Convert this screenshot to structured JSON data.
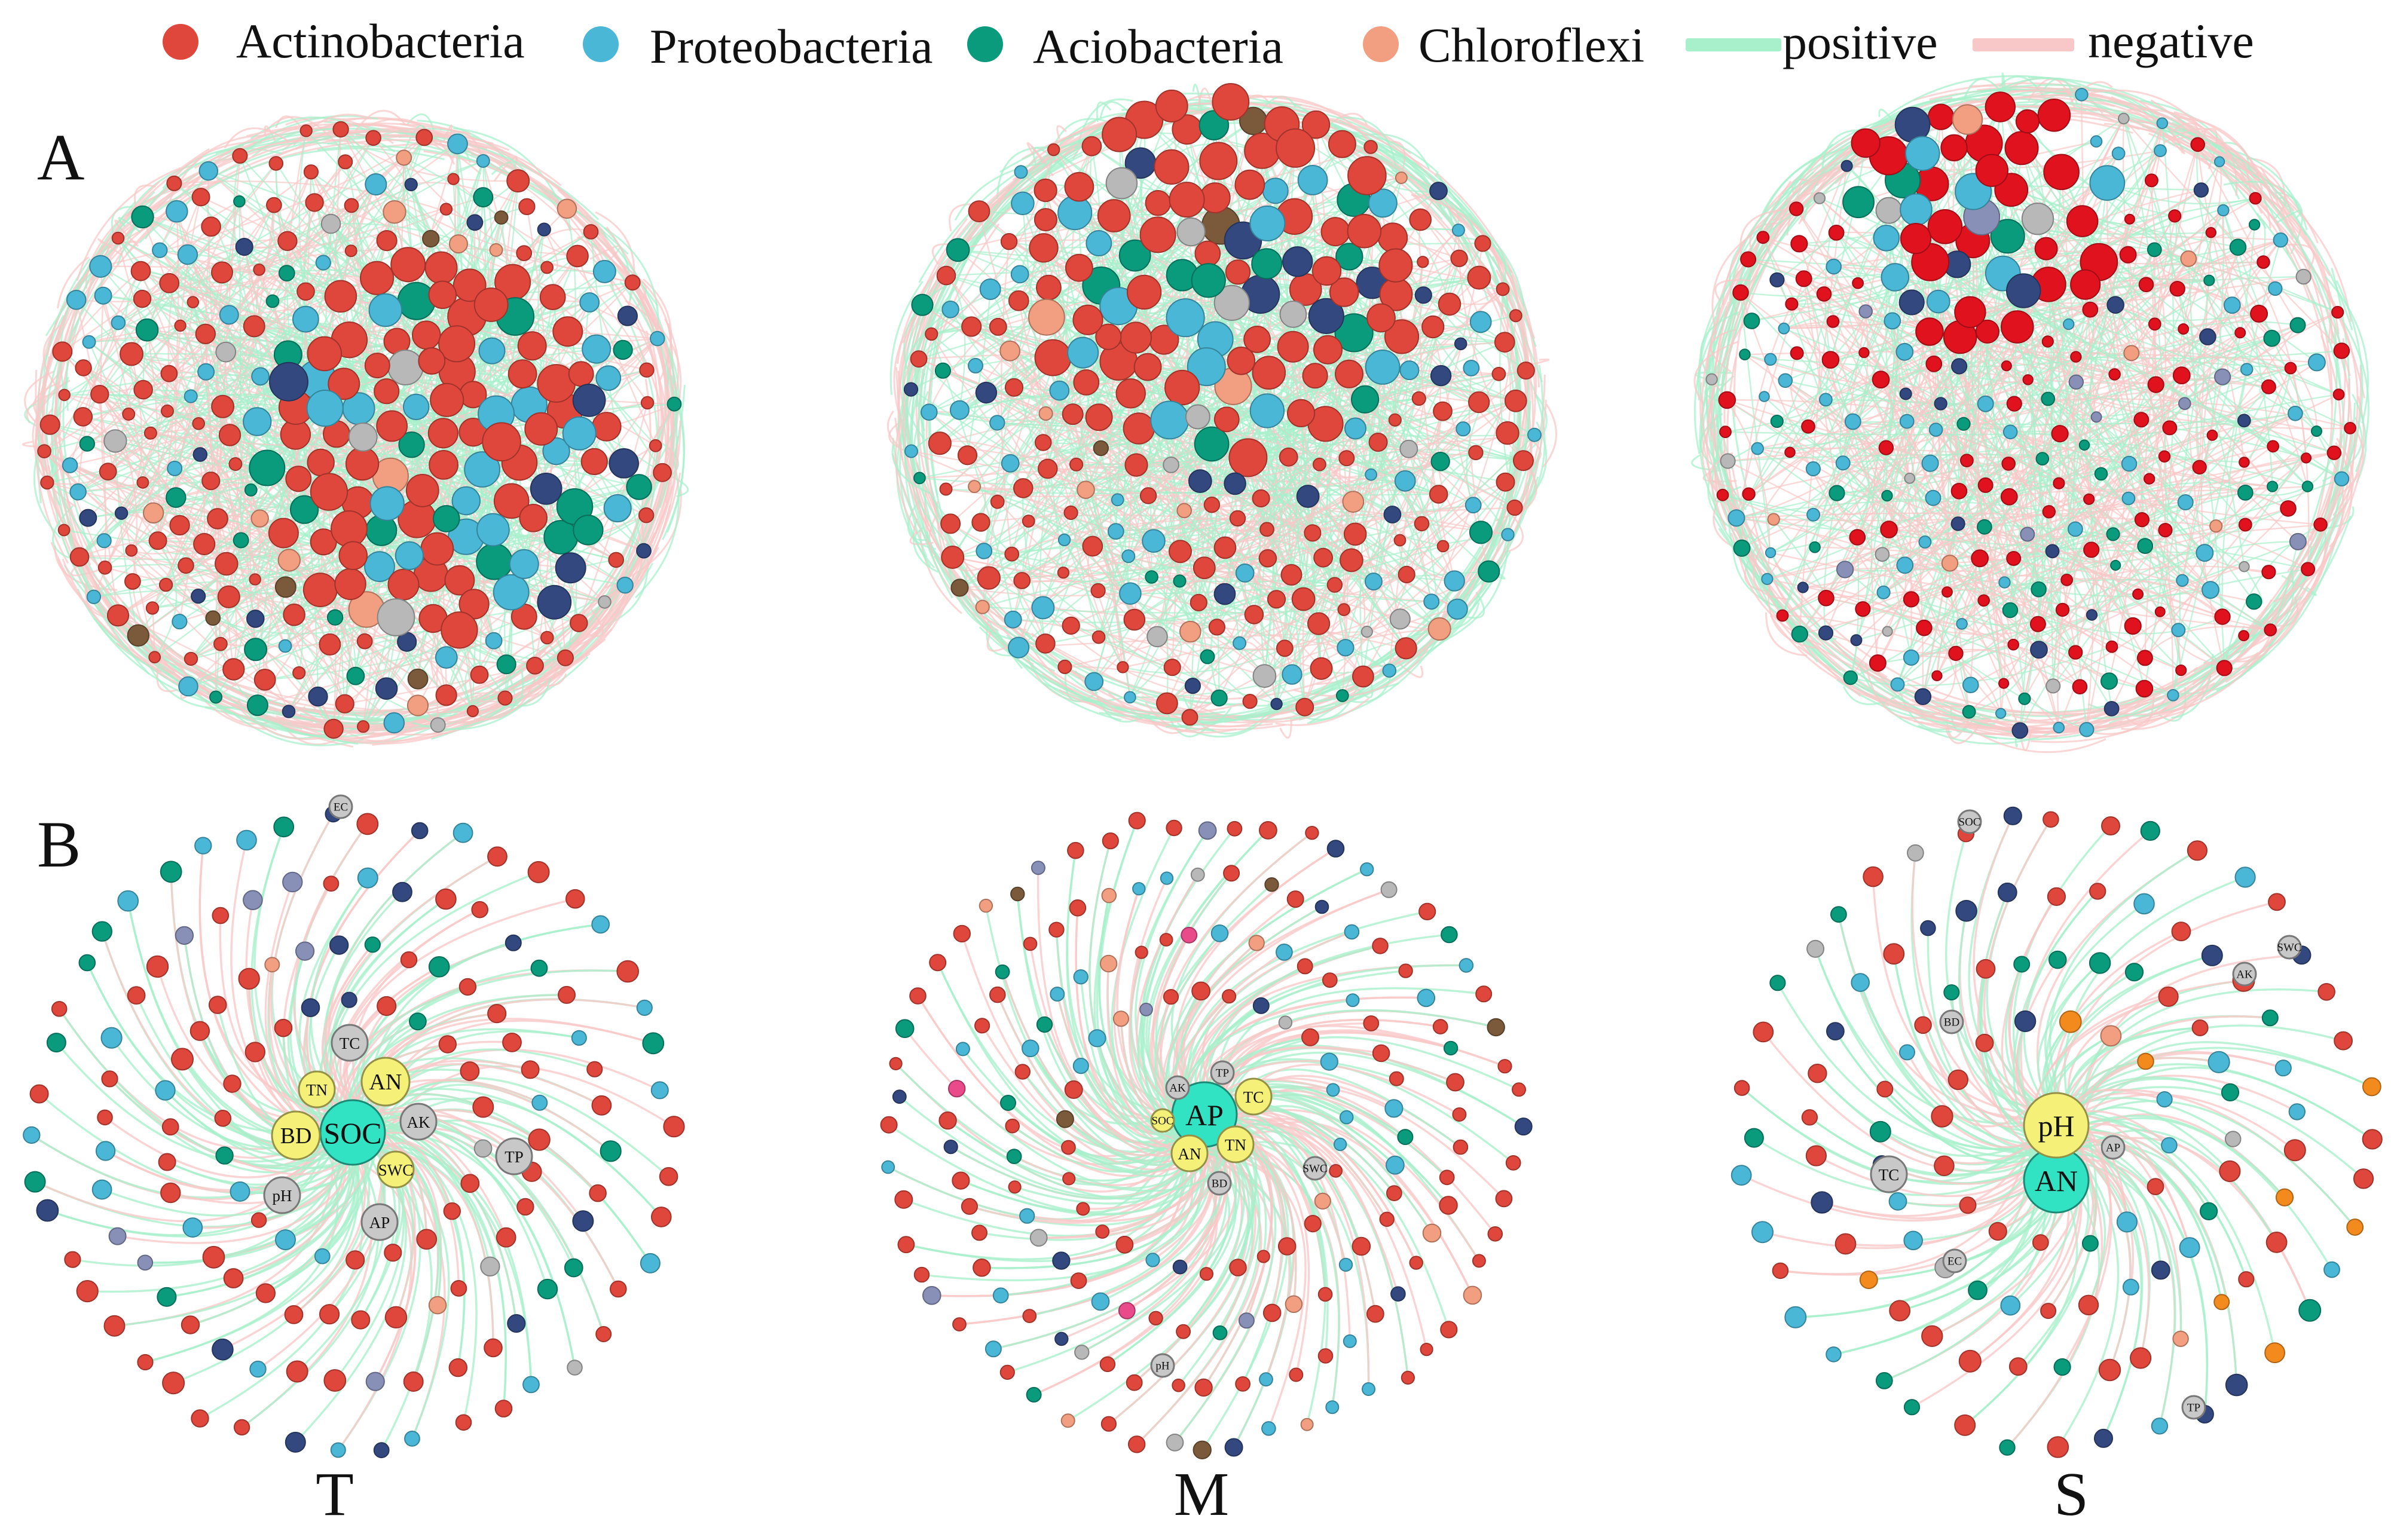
{
  "legend": {
    "items": [
      {
        "label": "Actinobacteria",
        "color": "#e0473c",
        "kind": "node"
      },
      {
        "label": "Proteobacteria",
        "color": "#4bb7d6",
        "kind": "node"
      },
      {
        "label": "Aciobacteria",
        "color": "#0a9a7c",
        "kind": "node"
      },
      {
        "label": "Chloroflexi",
        "color": "#f29e80",
        "kind": "node"
      },
      {
        "label": "positive",
        "color": "#a8f0cc",
        "kind": "edge"
      },
      {
        "label": "negative",
        "color": "#f8c8c8",
        "kind": "edge"
      }
    ]
  },
  "row_labels": {
    "a": "A",
    "b": "B"
  },
  "column_labels": [
    "T",
    "M",
    "S"
  ],
  "extra_colors": {
    "navy": "#33487f",
    "grey": "#b8b8b8",
    "brown": "#7a5a3a",
    "pink": "#e84a8a",
    "orange": "#f28a1e",
    "slate": "#8890b8",
    "bright_red": "#e0121e",
    "hub_yellow": "#f5f078",
    "hub_teal": "#31e3c2",
    "hub_grey": "#c8c8c8"
  },
  "networks_a": [
    {
      "id": "A-T",
      "column": "T",
      "style": "dense"
    },
    {
      "id": "A-M",
      "column": "M",
      "style": "dense"
    },
    {
      "id": "A-S",
      "column": "S",
      "style": "sparse"
    }
  ],
  "networks_b": [
    {
      "id": "B-T",
      "column": "T",
      "hubs": [
        {
          "label": "SOC",
          "color": "#31e3c2",
          "size": "large"
        },
        {
          "label": "AN",
          "color": "#f5f078",
          "size": "medium"
        },
        {
          "label": "BD",
          "color": "#f5f078",
          "size": "medium"
        },
        {
          "label": "TN",
          "color": "#f5f078",
          "size": "small"
        },
        {
          "label": "SWC",
          "color": "#f5f078",
          "size": "small"
        },
        {
          "label": "TC",
          "color": "#c8c8c8",
          "size": "small"
        },
        {
          "label": "AK",
          "color": "#c8c8c8",
          "size": "small"
        },
        {
          "label": "pH",
          "color": "#c8c8c8",
          "size": "small"
        },
        {
          "label": "AP",
          "color": "#c8c8c8",
          "size": "small"
        },
        {
          "label": "TP",
          "color": "#c8c8c8",
          "size": "small"
        },
        {
          "label": "EC",
          "color": "#c8c8c8",
          "size": "tiny"
        }
      ]
    },
    {
      "id": "B-M",
      "column": "M",
      "hubs": [
        {
          "label": "AP",
          "color": "#31e3c2",
          "size": "large"
        },
        {
          "label": "TC",
          "color": "#f5f078",
          "size": "small"
        },
        {
          "label": "TN",
          "color": "#f5f078",
          "size": "small"
        },
        {
          "label": "AN",
          "color": "#f5f078",
          "size": "small"
        },
        {
          "label": "SOC",
          "color": "#f5f078",
          "size": "tiny"
        },
        {
          "label": "AK",
          "color": "#c8c8c8",
          "size": "tiny"
        },
        {
          "label": "TP",
          "color": "#c8c8c8",
          "size": "tiny"
        },
        {
          "label": "BD",
          "color": "#c8c8c8",
          "size": "tiny"
        },
        {
          "label": "SWC",
          "color": "#c8c8c8",
          "size": "tiny"
        },
        {
          "label": "pH",
          "color": "#c8c8c8",
          "size": "tiny"
        }
      ]
    },
    {
      "id": "B-S",
      "column": "S",
      "hubs": [
        {
          "label": "AN",
          "color": "#31e3c2",
          "size": "large"
        },
        {
          "label": "pH",
          "color": "#f5f078",
          "size": "large"
        },
        {
          "label": "AP",
          "color": "#c8c8c8",
          "size": "tiny"
        },
        {
          "label": "SOC",
          "color": "#c8c8c8",
          "size": "tiny"
        },
        {
          "label": "SWC",
          "color": "#c8c8c8",
          "size": "tiny"
        },
        {
          "label": "AK",
          "color": "#c8c8c8",
          "size": "tiny"
        },
        {
          "label": "BD",
          "color": "#c8c8c8",
          "size": "tiny"
        },
        {
          "label": "TC",
          "color": "#c8c8c8",
          "size": "small"
        },
        {
          "label": "EC",
          "color": "#c8c8c8",
          "size": "tiny"
        },
        {
          "label": "TP",
          "color": "#c8c8c8",
          "size": "tiny"
        }
      ]
    }
  ]
}
